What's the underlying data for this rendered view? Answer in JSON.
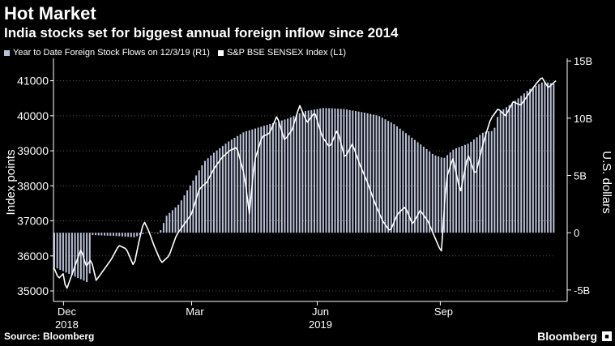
{
  "header": {
    "title": "Hot Market",
    "subtitle": "India stocks set for biggest annual foreign inflow since 2014"
  },
  "footer": {
    "source": "Source: Bloomberg",
    "brand": "Bloomberg"
  },
  "colors": {
    "background": "#000000",
    "bars": "#b9c0d8",
    "line": "#ffffff",
    "text": "#ffffff",
    "grid": "#5a5a5a"
  },
  "chart_data": {
    "type": "bar+line",
    "legend": [
      {
        "name": "Year to Date Foreign Stock Flows on 12/3/19 (R1)",
        "color": "#b9c0d8"
      },
      {
        "name": "S&P BSE SENSEX Index (L1)",
        "color": "#ffffff"
      }
    ],
    "legend_position": "top-left",
    "left_axis": {
      "label": "Index points",
      "min": 34700,
      "max": 41500,
      "ticks": [
        "35000",
        "36000",
        "37000",
        "38000",
        "39000",
        "40000",
        "41000"
      ]
    },
    "right_axis": {
      "label": "U.S. dollars",
      "min": -6,
      "max": 14.8,
      "ticks": [
        "-5B",
        "0",
        "5B",
        "10B",
        "15B"
      ],
      "tick_values": [
        -5,
        0,
        5,
        10,
        15
      ]
    },
    "x_axis": {
      "ticks": [
        {
          "label": "Dec",
          "sub": "2018",
          "t": 0.02
        },
        {
          "label": "Mar",
          "sub": "",
          "t": 0.275
        },
        {
          "label": "Jun",
          "sub": "2019",
          "t": 0.525
        },
        {
          "label": "Sep",
          "sub": "",
          "t": 0.77
        }
      ]
    },
    "grid": "horizontal dotted",
    "flows_keyframes": [
      [
        0.0,
        -3.0
      ],
      [
        0.07,
        -4.4
      ],
      [
        0.075,
        -0.2
      ],
      [
        0.13,
        -0.3
      ],
      [
        0.16,
        -0.4
      ],
      [
        0.19,
        0.1
      ],
      [
        0.21,
        -0.1
      ],
      [
        0.225,
        1.5
      ],
      [
        0.25,
        2.5
      ],
      [
        0.28,
        4.7
      ],
      [
        0.3,
        6.2
      ],
      [
        0.32,
        7.0
      ],
      [
        0.35,
        8.0
      ],
      [
        0.38,
        8.8
      ],
      [
        0.41,
        9.2
      ],
      [
        0.44,
        9.6
      ],
      [
        0.47,
        10.0
      ],
      [
        0.5,
        10.6
      ],
      [
        0.54,
        10.9
      ],
      [
        0.58,
        10.8
      ],
      [
        0.62,
        10.5
      ],
      [
        0.65,
        10.2
      ],
      [
        0.68,
        9.5
      ],
      [
        0.71,
        8.5
      ],
      [
        0.74,
        7.5
      ],
      [
        0.76,
        6.8
      ],
      [
        0.78,
        6.5
      ],
      [
        0.8,
        7.3
      ],
      [
        0.83,
        7.8
      ],
      [
        0.86,
        8.8
      ],
      [
        0.88,
        8.9
      ],
      [
        0.89,
        10.5
      ],
      [
        0.92,
        11.4
      ],
      [
        0.95,
        12.5
      ],
      [
        0.98,
        13.2
      ],
      [
        1.0,
        13.0
      ]
    ],
    "sensex_keyframes": [
      [
        0.0,
        35700
      ],
      [
        0.01,
        35350
      ],
      [
        0.02,
        35500
      ],
      [
        0.025,
        35000
      ],
      [
        0.03,
        35200
      ],
      [
        0.045,
        35800
      ],
      [
        0.055,
        36200
      ],
      [
        0.065,
        35700
      ],
      [
        0.075,
        35900
      ],
      [
        0.085,
        35300
      ],
      [
        0.1,
        35600
      ],
      [
        0.115,
        35900
      ],
      [
        0.13,
        36300
      ],
      [
        0.145,
        36200
      ],
      [
        0.16,
        35700
      ],
      [
        0.17,
        36400
      ],
      [
        0.18,
        37000
      ],
      [
        0.19,
        36700
      ],
      [
        0.2,
        36300
      ],
      [
        0.215,
        35800
      ],
      [
        0.23,
        36000
      ],
      [
        0.245,
        36600
      ],
      [
        0.26,
        36900
      ],
      [
        0.275,
        37200
      ],
      [
        0.29,
        37900
      ],
      [
        0.305,
        38100
      ],
      [
        0.32,
        38500
      ],
      [
        0.335,
        38800
      ],
      [
        0.35,
        39000
      ],
      [
        0.365,
        39100
      ],
      [
        0.38,
        38300
      ],
      [
        0.39,
        37200
      ],
      [
        0.4,
        38700
      ],
      [
        0.415,
        39400
      ],
      [
        0.43,
        39500
      ],
      [
        0.445,
        40000
      ],
      [
        0.46,
        39300
      ],
      [
        0.475,
        39600
      ],
      [
        0.49,
        40300
      ],
      [
        0.505,
        39800
      ],
      [
        0.52,
        40100
      ],
      [
        0.535,
        39400
      ],
      [
        0.55,
        39100
      ],
      [
        0.565,
        39600
      ],
      [
        0.58,
        38800
      ],
      [
        0.595,
        39200
      ],
      [
        0.61,
        38600
      ],
      [
        0.625,
        38100
      ],
      [
        0.64,
        37500
      ],
      [
        0.655,
        37000
      ],
      [
        0.67,
        36700
      ],
      [
        0.685,
        37200
      ],
      [
        0.7,
        37400
      ],
      [
        0.715,
        36900
      ],
      [
        0.73,
        37300
      ],
      [
        0.745,
        37000
      ],
      [
        0.76,
        36500
      ],
      [
        0.772,
        36100
      ],
      [
        0.782,
        38200
      ],
      [
        0.795,
        38800
      ],
      [
        0.81,
        37800
      ],
      [
        0.825,
        38900
      ],
      [
        0.84,
        38300
      ],
      [
        0.855,
        39200
      ],
      [
        0.87,
        39900
      ],
      [
        0.885,
        40200
      ],
      [
        0.9,
        40000
      ],
      [
        0.915,
        40400
      ],
      [
        0.93,
        40300
      ],
      [
        0.945,
        40600
      ],
      [
        0.96,
        40900
      ],
      [
        0.972,
        41100
      ],
      [
        0.985,
        40800
      ],
      [
        1.0,
        41000
      ]
    ]
  }
}
